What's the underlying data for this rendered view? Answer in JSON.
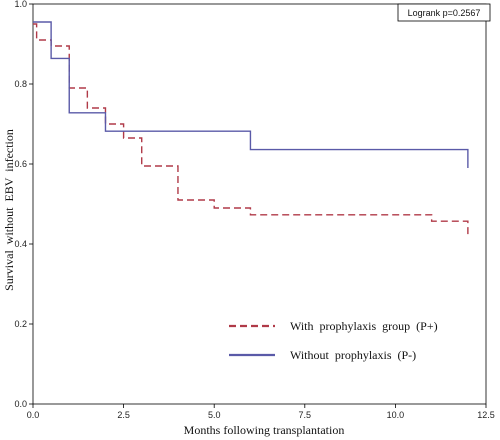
{
  "chart_data": {
    "type": "line",
    "xlabel": "Months following transplantation",
    "ylabel": "Survival  without  EBV  infection",
    "xlim": [
      0,
      12.5
    ],
    "ylim": [
      0,
      1.0
    ],
    "x_ticks": [
      "0.0",
      "2.5",
      "5.0",
      "7.5",
      "10.0",
      "12.5"
    ],
    "y_ticks": [
      "0.0",
      "0.2",
      "0.4",
      "0.6",
      "0.8",
      "1.0"
    ],
    "annotation": "Logrank p=0.2567",
    "legend_position": "bottom-right",
    "grid": false,
    "series": [
      {
        "name": "With  prophylaxis  group  (P+)",
        "color": "#b03a48",
        "dash": "dashed",
        "steps": [
          [
            0,
            0.95
          ],
          [
            0.1,
            0.91
          ],
          [
            0.5,
            0.895
          ],
          [
            1.0,
            0.79
          ],
          [
            1.5,
            0.74
          ],
          [
            2.0,
            0.7
          ],
          [
            2.5,
            0.665
          ],
          [
            3.0,
            0.595
          ],
          [
            4.0,
            0.51
          ],
          [
            5.0,
            0.49
          ],
          [
            6.0,
            0.473
          ],
          [
            11.0,
            0.457
          ],
          [
            12.0,
            0.42
          ]
        ],
        "end_x": 12.0
      },
      {
        "name": "Without  prophylaxis  (P-)",
        "color": "#5a5aa8",
        "dash": "solid",
        "steps": [
          [
            0,
            0.955
          ],
          [
            0.5,
            0.864
          ],
          [
            1.0,
            0.728
          ],
          [
            2.0,
            0.682
          ],
          [
            6.0,
            0.636
          ],
          [
            12.0,
            0.59
          ]
        ],
        "end_x": 12.0
      }
    ]
  }
}
